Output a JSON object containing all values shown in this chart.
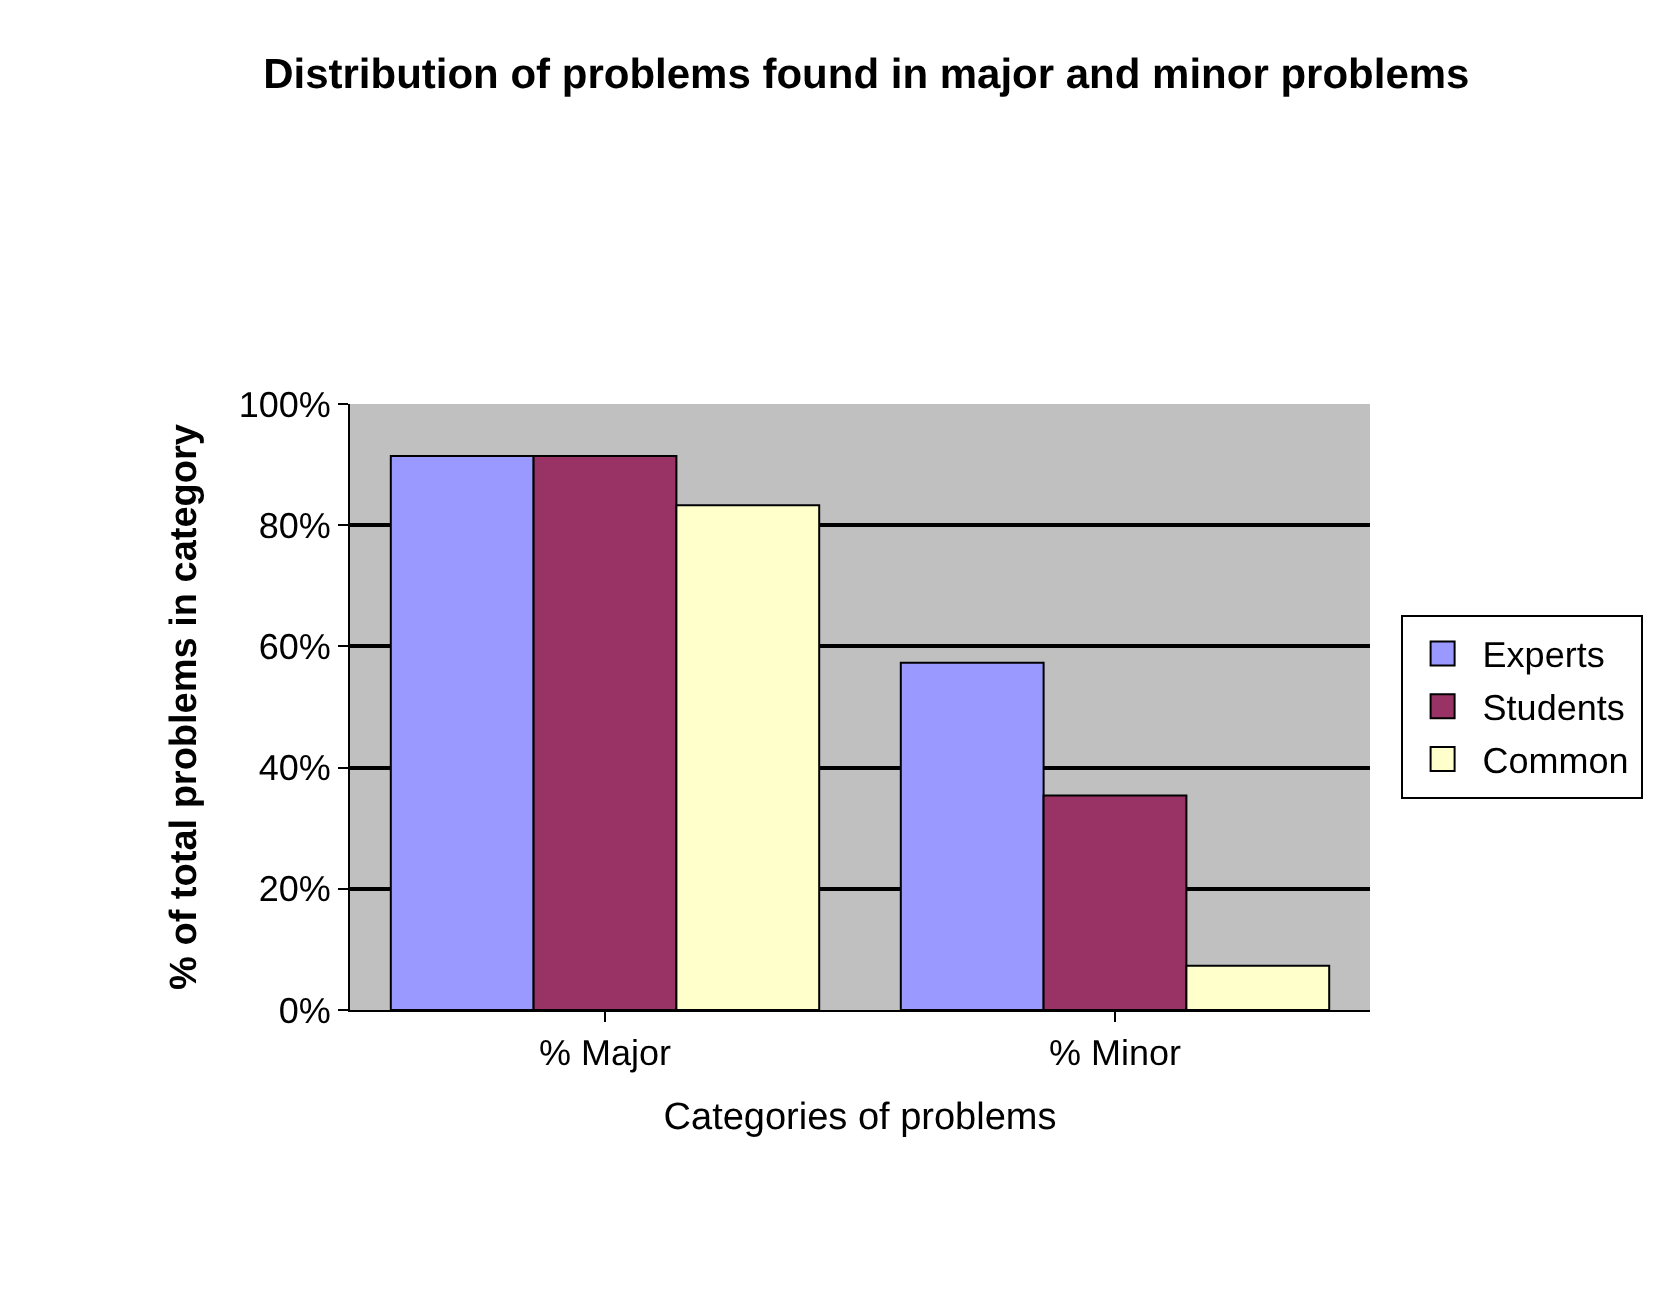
{
  "chart_data": {
    "type": "bar",
    "title": "Distribution of problems found in major and minor problems",
    "xlabel": "Categories of problems",
    "ylabel": "% of total problems in category",
    "categories": [
      "% Major",
      "% Minor"
    ],
    "series": [
      {
        "name": "Experts",
        "color": "#9999ff",
        "values": [
          91.4,
          57.3
        ]
      },
      {
        "name": "Students",
        "color": "#993366",
        "values": [
          91.4,
          35.4
        ]
      },
      {
        "name": "Common",
        "color": "#ffffcc",
        "values": [
          83.3,
          7.3
        ]
      }
    ],
    "ylim": [
      0,
      100
    ],
    "yticks": [
      {
        "value": 0,
        "label": "0%"
      },
      {
        "value": 20,
        "label": "20%"
      },
      {
        "value": 40,
        "label": "40%"
      },
      {
        "value": 60,
        "label": "60%"
      },
      {
        "value": 80,
        "label": "80%"
      },
      {
        "value": 100,
        "label": "100%"
      }
    ],
    "grid": "y",
    "legend": "right"
  }
}
